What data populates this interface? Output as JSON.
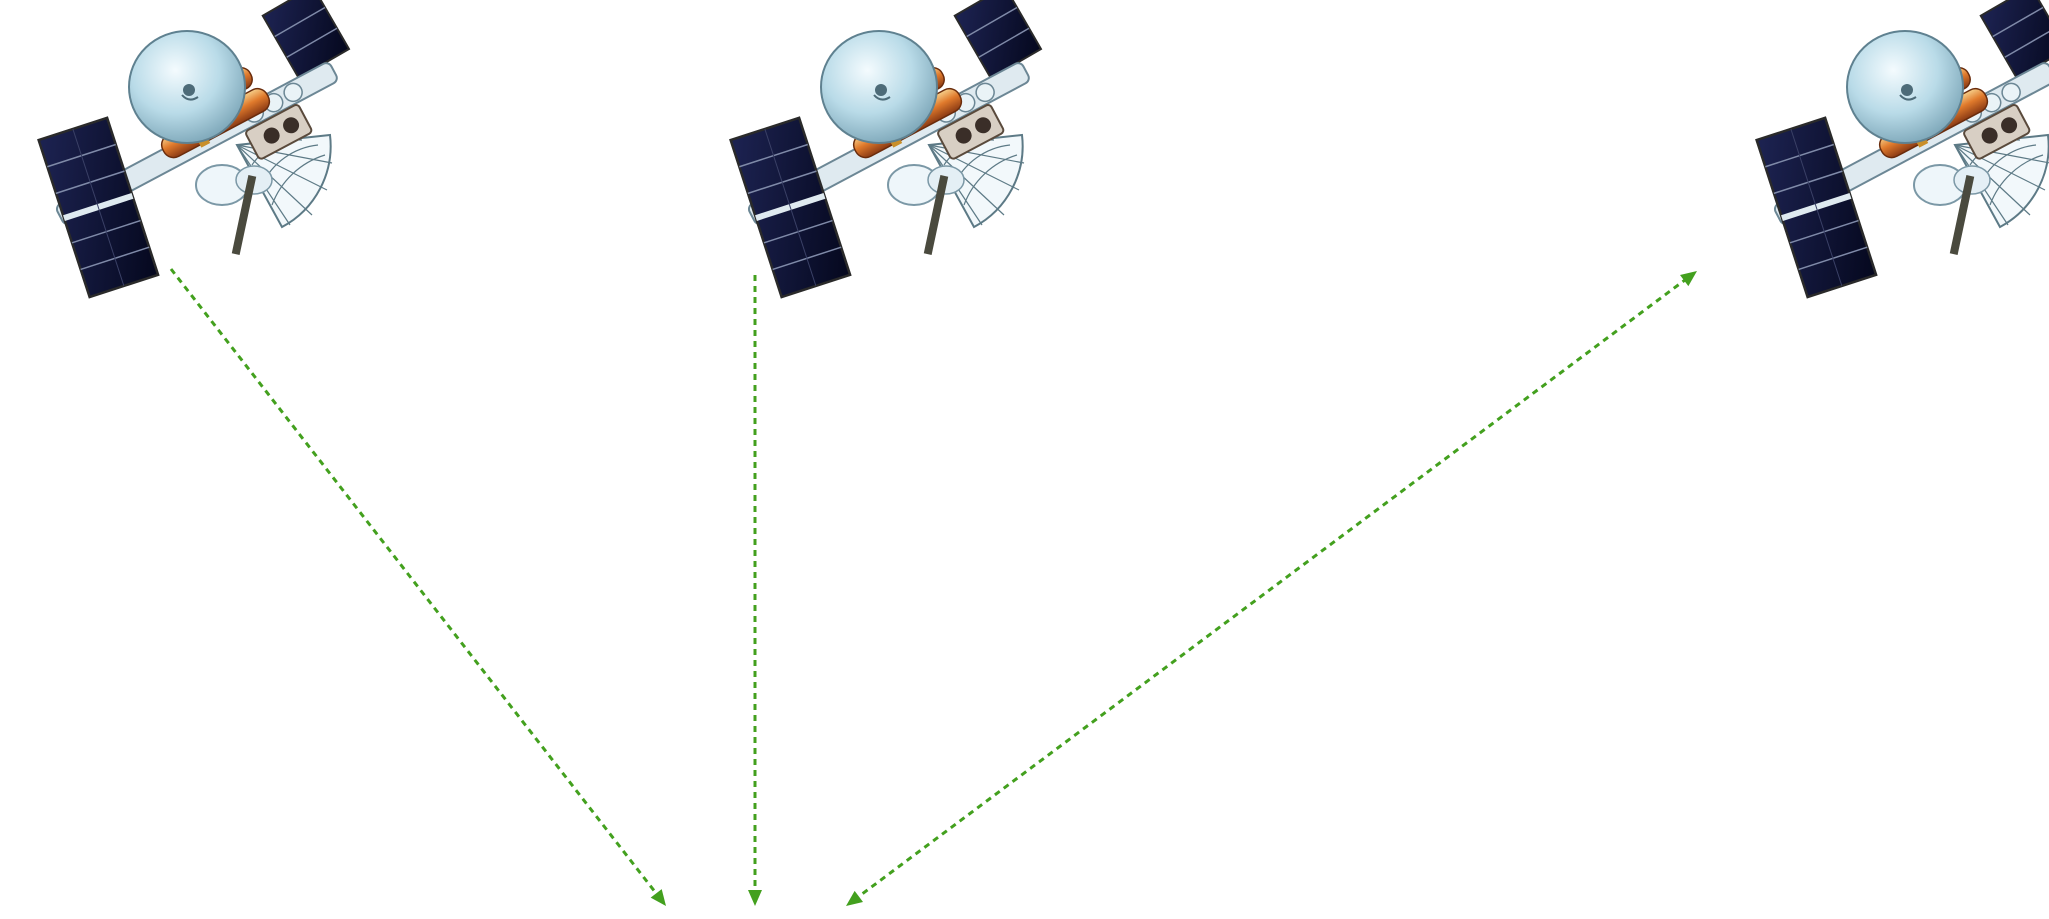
{
  "diagram": {
    "background_color": "#ffffff",
    "link_color": "#43a01e",
    "link_style": "dashed",
    "satellites": [
      {
        "name": "satellite-left",
        "icon": "satellite-icon"
      },
      {
        "name": "satellite-center",
        "icon": "satellite-icon"
      },
      {
        "name": "satellite-right",
        "icon": "satellite-icon"
      }
    ],
    "links": [
      {
        "name": "link-left-satellite-to-ground",
        "from": "satellite-left",
        "to": "ground-point",
        "arrow_at_end": true,
        "arrow_at_start": false
      },
      {
        "name": "link-center-satellite-to-ground",
        "from": "satellite-center",
        "to": "ground-point",
        "arrow_at_end": true,
        "arrow_at_start": false
      },
      {
        "name": "link-right-satellite-ground",
        "from": "satellite-right",
        "to": "ground-point",
        "arrow_at_end": true,
        "arrow_at_start": true
      }
    ],
    "satellite_colors": {
      "panel": "#101438",
      "panel_grid": "#7f8aa8",
      "panel_frame": "#2a2a2a",
      "boom": "#dfeaf0",
      "boom_outline": "#6c8795",
      "dish": "#b9dbe8",
      "dish_highlight": "#eef8fc",
      "dish_outline": "#5f8190",
      "tank": "#d9712a",
      "tank_light": "#f3c07a",
      "gold": "#c98f2a",
      "fan": "#f2f8fb",
      "fan_lines": "#5d7a86",
      "mast": "#4a4a3e"
    }
  }
}
